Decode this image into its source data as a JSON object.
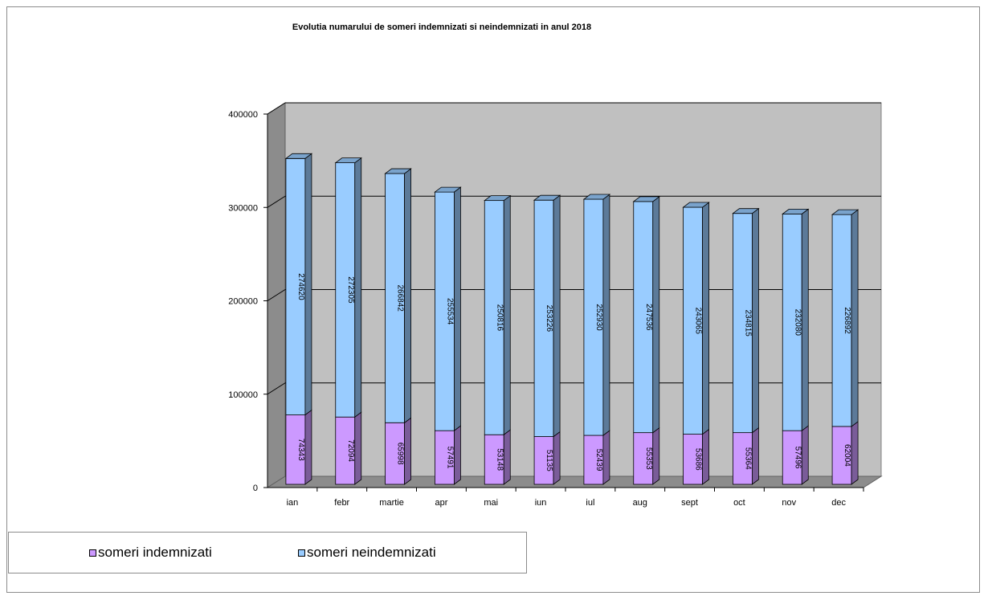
{
  "chart_data": {
    "type": "bar",
    "subtype": "stacked-3d",
    "title": "Evolutia numarului de someri indemnizati si neindemnizati in anul 2018",
    "categories": [
      "ian",
      "febr",
      "martie",
      "apr",
      "mai",
      "iun",
      "iul",
      "aug",
      "sept",
      "oct",
      "nov",
      "dec"
    ],
    "series": [
      {
        "name": "someri indemnizati",
        "color": "#cc99ff",
        "values": [
          74343,
          72094,
          65998,
          57491,
          53148,
          51135,
          52439,
          55353,
          53686,
          55364,
          57496,
          62004
        ],
        "labels": [
          "74343",
          "72094",
          "65998",
          "57491",
          "53148",
          "51135",
          "52439",
          "55353",
          "53686",
          "55364",
          "57496",
          "62004"
        ]
      },
      {
        "name": "someri neindemnizati",
        "color": "#99ccff",
        "values": [
          274620,
          272305,
          266842,
          255534,
          250816,
          253226,
          252930,
          247536,
          243065,
          234815,
          232080,
          226892
        ],
        "labels": [
          "274620",
          "272305",
          "266842",
          "255534",
          "250816",
          "253226",
          "252930",
          "247536",
          "243065",
          "234815",
          "232080",
          "226892"
        ]
      }
    ],
    "ylim": [
      0,
      400000
    ],
    "yticks": [
      0,
      100000,
      200000,
      300000,
      400000
    ],
    "ytick_labels": [
      "0",
      "100000",
      "200000",
      "300000",
      "400000"
    ],
    "grid": true,
    "legend_position": "bottom-left",
    "plot_background": "#c0c0c0"
  }
}
